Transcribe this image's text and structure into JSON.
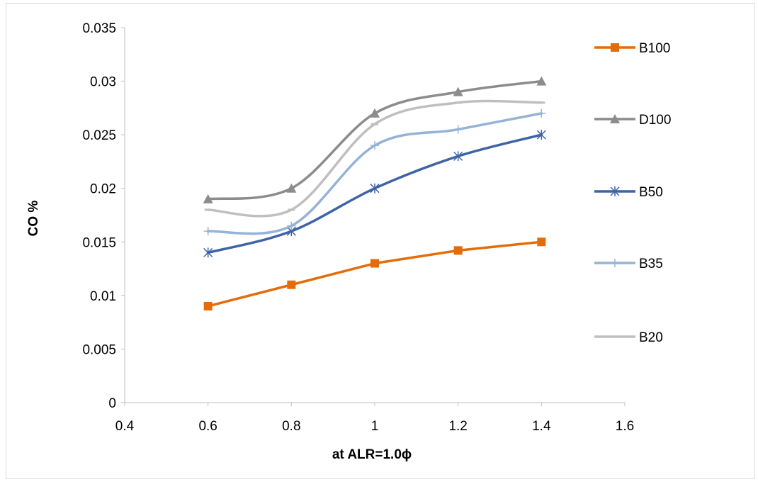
{
  "chart_data": {
    "type": "line",
    "title": "",
    "xlabel": "at ALR=1.0ϕ",
    "ylabel": "CO %",
    "xlim": [
      0.4,
      1.6
    ],
    "ylim": [
      0,
      0.035
    ],
    "x_ticks": [
      "0.4",
      "0.6",
      "0.8",
      "1",
      "1.2",
      "1.4",
      "1.6"
    ],
    "y_ticks": [
      "0",
      "0.005",
      "0.01",
      "0.015",
      "0.02",
      "0.025",
      "0.03",
      "0.035"
    ],
    "grid": false,
    "legend_position": "right",
    "x": [
      0.6,
      0.8,
      1.0,
      1.2,
      1.4
    ],
    "series": [
      {
        "name": "B100",
        "values": [
          0.009,
          0.011,
          0.013,
          0.0142,
          0.015
        ],
        "color": "#E46C0A",
        "marker": "square",
        "smooth": false
      },
      {
        "name": "D100",
        "values": [
          0.019,
          0.02,
          0.027,
          0.029,
          0.03
        ],
        "color": "#8C8C8C",
        "marker": "triangle",
        "smooth": true
      },
      {
        "name": "B50",
        "values": [
          0.014,
          0.016,
          0.02,
          0.023,
          0.025
        ],
        "color": "#3F64A6",
        "marker": "star",
        "smooth": true
      },
      {
        "name": "B35",
        "values": [
          0.016,
          0.0165,
          0.024,
          0.0255,
          0.027
        ],
        "color": "#95B3D7",
        "marker": "plus",
        "smooth": true
      },
      {
        "name": "B20",
        "values": [
          0.018,
          0.018,
          0.026,
          0.028,
          0.028
        ],
        "color": "#BFBFBF",
        "marker": "dash",
        "smooth": true
      }
    ]
  }
}
